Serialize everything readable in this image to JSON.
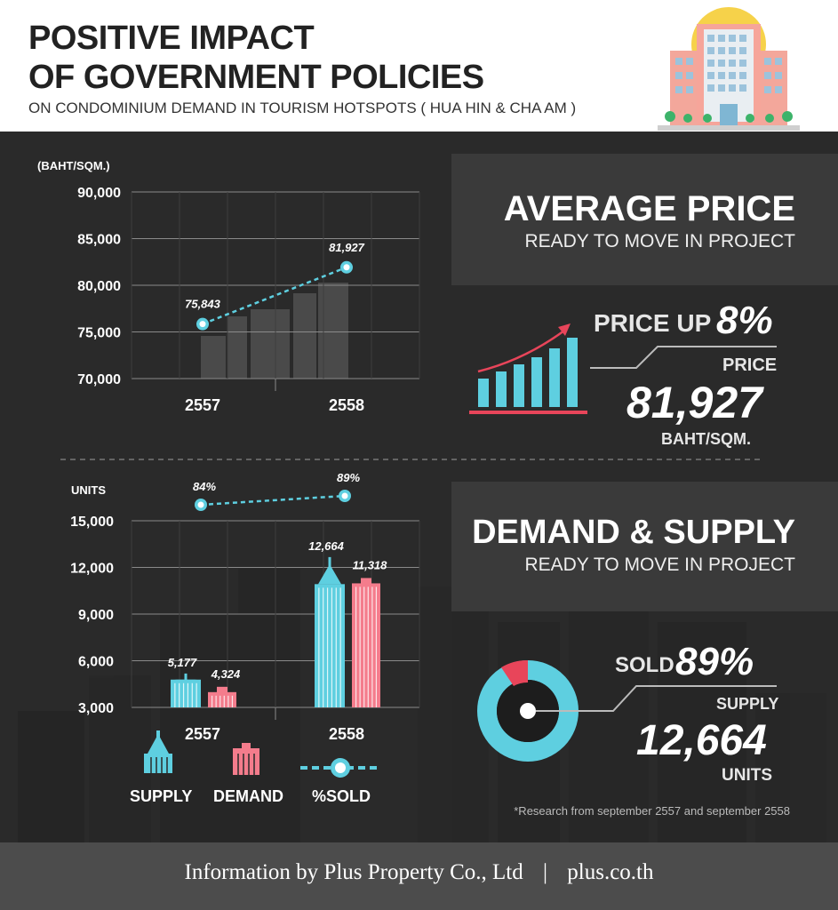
{
  "header": {
    "title_line1": "POSITIVE IMPACT",
    "title_line2": "OF GOVERNMENT POLICIES",
    "subtitle": "ON CONDOMINIUM DEMAND IN TOURISM HOTSPOTS ( HUA HIN & CHA AM )"
  },
  "average_price_panel": {
    "title": "AVERAGE PRICE",
    "subtitle": "READY TO MOVE IN PROJECT",
    "price_up_label": "PRICE UP",
    "price_up_value": "8%",
    "price_label": "PRICE",
    "price_value": "81,927",
    "price_unit": "BAHT/SQM."
  },
  "demand_supply_panel": {
    "title": "DEMAND & SUPPLY",
    "subtitle": "READY TO MOVE IN PROJECT",
    "sold_label": "SOLD",
    "sold_value": "89%",
    "supply_label": "SUPPLY",
    "supply_value": "12,664",
    "supply_unit": "UNITS"
  },
  "legend": {
    "supply": "SUPPLY",
    "demand": "DEMAND",
    "sold": "%SOLD"
  },
  "footnote": "*Research from september 2557 and september 2558",
  "footer": {
    "credit": "Information by Plus Property Co., Ltd",
    "separator": "|",
    "site": "plus.co.th"
  },
  "colors": {
    "supply": "#5ecfe0",
    "demand": "#f47c8c",
    "accent_red": "#e8455a",
    "dark_bg": "#2a2a2a",
    "panel_bg": "#3a3a3a"
  },
  "chart_data": [
    {
      "type": "line",
      "ylabel": "(BAHT/SQM.)",
      "categories": [
        "2557",
        "2558"
      ],
      "ylim": [
        70000,
        90000
      ],
      "yticks": [
        "70,000",
        "75,000",
        "80,000",
        "85,000",
        "90,000"
      ],
      "ytick_values": [
        70000,
        75000,
        80000,
        85000,
        90000
      ],
      "values": [
        75843,
        81927
      ],
      "data_labels": [
        "75,843",
        "81,927"
      ],
      "grid": true
    },
    {
      "type": "bar",
      "ylabel": "UNITS",
      "categories": [
        "2557",
        "2558"
      ],
      "ylim": [
        3000,
        15000
      ],
      "yticks": [
        "3,000",
        "6,000",
        "9,000",
        "12,000",
        "15,000"
      ],
      "ytick_values": [
        3000,
        6000,
        9000,
        12000,
        15000
      ],
      "series": [
        {
          "name": "SUPPLY",
          "values": [
            5177,
            12664
          ],
          "labels": [
            "5,177",
            "12,664"
          ]
        },
        {
          "name": "DEMAND",
          "values": [
            4324,
            11318
          ],
          "labels": [
            "4,324",
            "11,318"
          ]
        }
      ],
      "sold_percent": {
        "name": "%SOLD",
        "values": [
          84,
          89
        ],
        "labels": [
          "84%",
          "89%"
        ]
      },
      "grid": true
    }
  ]
}
